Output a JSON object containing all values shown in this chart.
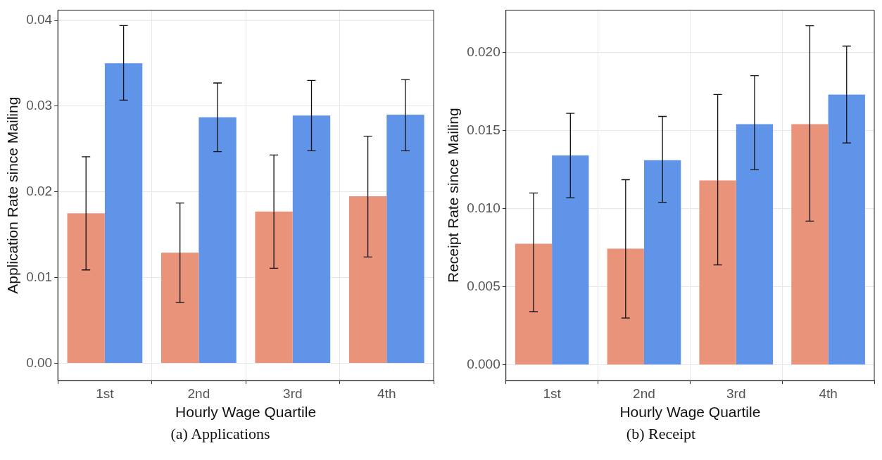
{
  "chart_data": [
    {
      "type": "bar",
      "xlabel": "Hourly Wage Quartile",
      "ylabel": "Application Rate since Mailing",
      "categories": [
        "1st",
        "2nd",
        "3rd",
        "4th"
      ],
      "series": [
        {
          "color": "#e9937a",
          "values": [
            0.0175,
            0.0129,
            0.0177,
            0.0195
          ],
          "errors": [
            [
              0.0109,
              0.0241
            ],
            [
              0.0071,
              0.0187
            ],
            [
              0.0111,
              0.0243
            ],
            [
              0.0124,
              0.0265
            ]
          ]
        },
        {
          "color": "#6094e8",
          "values": [
            0.035,
            0.0287,
            0.0289,
            0.029
          ],
          "errors": [
            [
              0.0307,
              0.0394
            ],
            [
              0.0247,
              0.0327
            ],
            [
              0.0248,
              0.033
            ],
            [
              0.0248,
              0.0331
            ]
          ]
        }
      ],
      "ylim": [
        -0.002,
        0.0412
      ],
      "yticks": [
        {
          "value": 0,
          "label": "0.00"
        },
        0.01,
        0.02,
        0.03,
        0.04
      ],
      "grid": true,
      "legend": false,
      "annotations": [
        "(a) Applications"
      ]
    },
    {
      "type": "bar",
      "xlabel": "Hourly Wage Quartile",
      "ylabel": "Receipt Rate since Mailing",
      "categories": [
        "1st",
        "2nd",
        "3rd",
        "4th"
      ],
      "series": [
        {
          "color": "#e9937a",
          "values": [
            0.00775,
            0.00744,
            0.0118,
            0.0154
          ],
          "errors": [
            [
              0.0034,
              0.011
            ],
            [
              0.003,
              0.01185
            ],
            [
              0.0064,
              0.0173
            ],
            [
              0.0092,
              0.0217
            ]
          ]
        },
        {
          "color": "#6094e8",
          "values": [
            0.0134,
            0.0131,
            0.0154,
            0.0173
          ],
          "errors": [
            [
              0.0107,
              0.0161
            ],
            [
              0.0104,
              0.0159
            ],
            [
              0.0125,
              0.0185
            ],
            [
              0.0142,
              0.0204
            ]
          ]
        }
      ],
      "ylim": [
        -0.001,
        0.0227
      ],
      "yticks": [
        {
          "value": 0,
          "label": "0.000"
        },
        0.005,
        {
          "value": 0.01,
          "label": "0.010"
        },
        0.015,
        {
          "value": 0.02,
          "label": "0.020"
        }
      ],
      "grid": true,
      "legend": false,
      "annotations": [
        "(b) Receipt"
      ]
    }
  ]
}
